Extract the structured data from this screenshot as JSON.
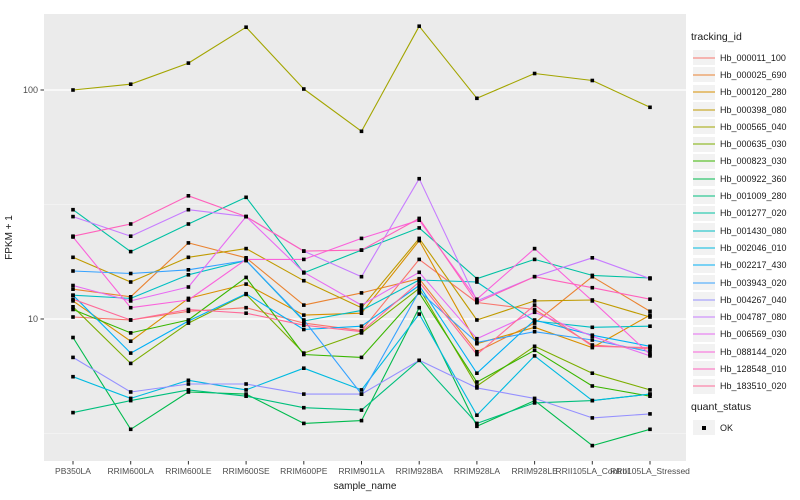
{
  "chart_data": {
    "type": "line",
    "xlabel": "sample_name",
    "ylabel": "FPKM + 1",
    "yscale": "log10",
    "ylim": [
      2.4,
      212
    ],
    "yticks": [
      100,
      10
    ],
    "ytick_labels": [
      "100",
      "10"
    ],
    "yminor_ticks": [
      31.623,
      3.1623
    ],
    "grid": "on",
    "panel_color": "#EBEBEB",
    "gridline_color": "#FFFFFF",
    "point_color": "#000000",
    "point_shape": "square",
    "legend_position": "right",
    "categories": [
      "PB350LA",
      "RRIM600LA",
      "RRIM600LE",
      "RRIM600SE",
      "RRIM600PE",
      "RRIM901LA",
      "RRIM928BA",
      "RRIM928LA",
      "RRIM928LE",
      "RRII105LA_Control",
      "RRII105LA_Stressed"
    ],
    "series": [
      {
        "name": "Hb_000011_100",
        "color": "#F8766D",
        "values": [
          10.2,
          9.9,
          10.8,
          11.2,
          9.6,
          8.9,
          18.2,
          11.8,
          11.0,
          7.7,
          7.4
        ]
      },
      {
        "name": "Hb_000025_690",
        "color": "#EA8331",
        "values": [
          13.5,
          12.5,
          21.5,
          18.5,
          11.5,
          13.0,
          15.0,
          7.2,
          9.6,
          15.3,
          10.8
        ]
      },
      {
        "name": "Hb_000120_280",
        "color": "#D89000",
        "values": [
          12.0,
          8.0,
          12.3,
          14.2,
          10.4,
          10.6,
          22.0,
          7.8,
          9.2,
          7.5,
          10.4
        ]
      },
      {
        "name": "Hb_000398_080",
        "color": "#C09B00",
        "values": [
          18.6,
          14.5,
          18.6,
          20.3,
          14.7,
          11.2,
          22.5,
          9.9,
          12.0,
          12.1,
          10.2
        ]
      },
      {
        "name": "Hb_000565_040",
        "color": "#A3A500",
        "values": [
          100,
          106,
          131,
          188,
          101,
          66,
          190,
          92,
          118,
          110,
          84
        ]
      },
      {
        "name": "Hb_000635_030",
        "color": "#7CAE00",
        "values": [
          11.3,
          6.4,
          9.6,
          12.8,
          7.1,
          8.7,
          13.6,
          5.1,
          7.6,
          5.8,
          4.9
        ]
      },
      {
        "name": "Hb_000823_030",
        "color": "#39B600",
        "values": [
          11.0,
          8.7,
          9.9,
          15.2,
          7.0,
          6.8,
          13.0,
          5.3,
          7.3,
          5.1,
          4.6
        ]
      },
      {
        "name": "Hb_000922_360",
        "color": "#00BB4E",
        "values": [
          8.3,
          3.3,
          4.8,
          4.7,
          3.5,
          3.6,
          11.2,
          3.4,
          4.4,
          2.8,
          3.3
        ]
      },
      {
        "name": "Hb_001009_280",
        "color": "#00BF7D",
        "values": [
          3.9,
          4.4,
          4.9,
          4.6,
          4.1,
          4.0,
          6.6,
          3.5,
          4.3,
          4.4,
          4.7
        ]
      },
      {
        "name": "Hb_001277_020",
        "color": "#00C1A3",
        "values": [
          30,
          19.7,
          26,
          34,
          15.9,
          20,
          25,
          15.0,
          18.2,
          15.5,
          15.1
        ]
      },
      {
        "name": "Hb_001430_080",
        "color": "#00BFC4",
        "values": [
          12.7,
          12.3,
          15.6,
          18.0,
          9.8,
          10.9,
          14.8,
          14.5,
          9.8,
          9.2,
          9.3
        ]
      },
      {
        "name": "Hb_002046_010",
        "color": "#00BAE0",
        "values": [
          5.6,
          4.5,
          5.4,
          4.9,
          6.1,
          4.9,
          10.5,
          3.8,
          6.9,
          4.4,
          4.7
        ]
      },
      {
        "name": "Hb_002217_430",
        "color": "#00B0F6",
        "values": [
          12.7,
          7.1,
          9.8,
          12.9,
          9.0,
          9.3,
          14.0,
          5.8,
          9.9,
          8.5,
          7.6
        ]
      },
      {
        "name": "Hb_003943_020",
        "color": "#35A2FF",
        "values": [
          16.2,
          15.8,
          16.4,
          18.0,
          9.9,
          4.7,
          13.2,
          7.9,
          8.8,
          8.1,
          7.2
        ]
      },
      {
        "name": "Hb_004267_040",
        "color": "#9590FF",
        "values": [
          6.8,
          4.8,
          5.2,
          5.2,
          4.7,
          4.7,
          6.6,
          5.0,
          4.5,
          3.7,
          3.85
        ]
      },
      {
        "name": "Hb_004787_080",
        "color": "#C77CFF",
        "values": [
          28.0,
          23.0,
          30.0,
          28.0,
          19.8,
          15.3,
          41.0,
          12.0,
          15.3,
          18.5,
          15.0
        ]
      },
      {
        "name": "Hb_006569_030",
        "color": "#E76BF3",
        "values": [
          14.0,
          12.0,
          13.8,
          28.0,
          16.0,
          11.5,
          16.0,
          8.2,
          10.7,
          8.4,
          6.9
        ]
      },
      {
        "name": "Hb_088144_020",
        "color": "#FA62DB",
        "values": [
          22.8,
          11.2,
          12.1,
          18.2,
          18.2,
          22.5,
          27.0,
          12.2,
          20.3,
          12.0,
          7.0
        ]
      },
      {
        "name": "Hb_128548_010",
        "color": "#FF62BC",
        "values": [
          23.0,
          26.0,
          34.5,
          28.0,
          19.8,
          20.0,
          27.5,
          11.8,
          15.3,
          13.7,
          12.2
        ]
      },
      {
        "name": "Hb_183510_020",
        "color": "#FF6A98",
        "values": [
          12.2,
          9.9,
          11.0,
          10.6,
          9.4,
          8.8,
          14.5,
          7.0,
          11.5,
          7.6,
          7.5
        ]
      }
    ],
    "legend": {
      "color_legend_title": "tracking_id",
      "shape_legend_title": "quant_status",
      "shape_legend_items": [
        "OK"
      ]
    }
  }
}
